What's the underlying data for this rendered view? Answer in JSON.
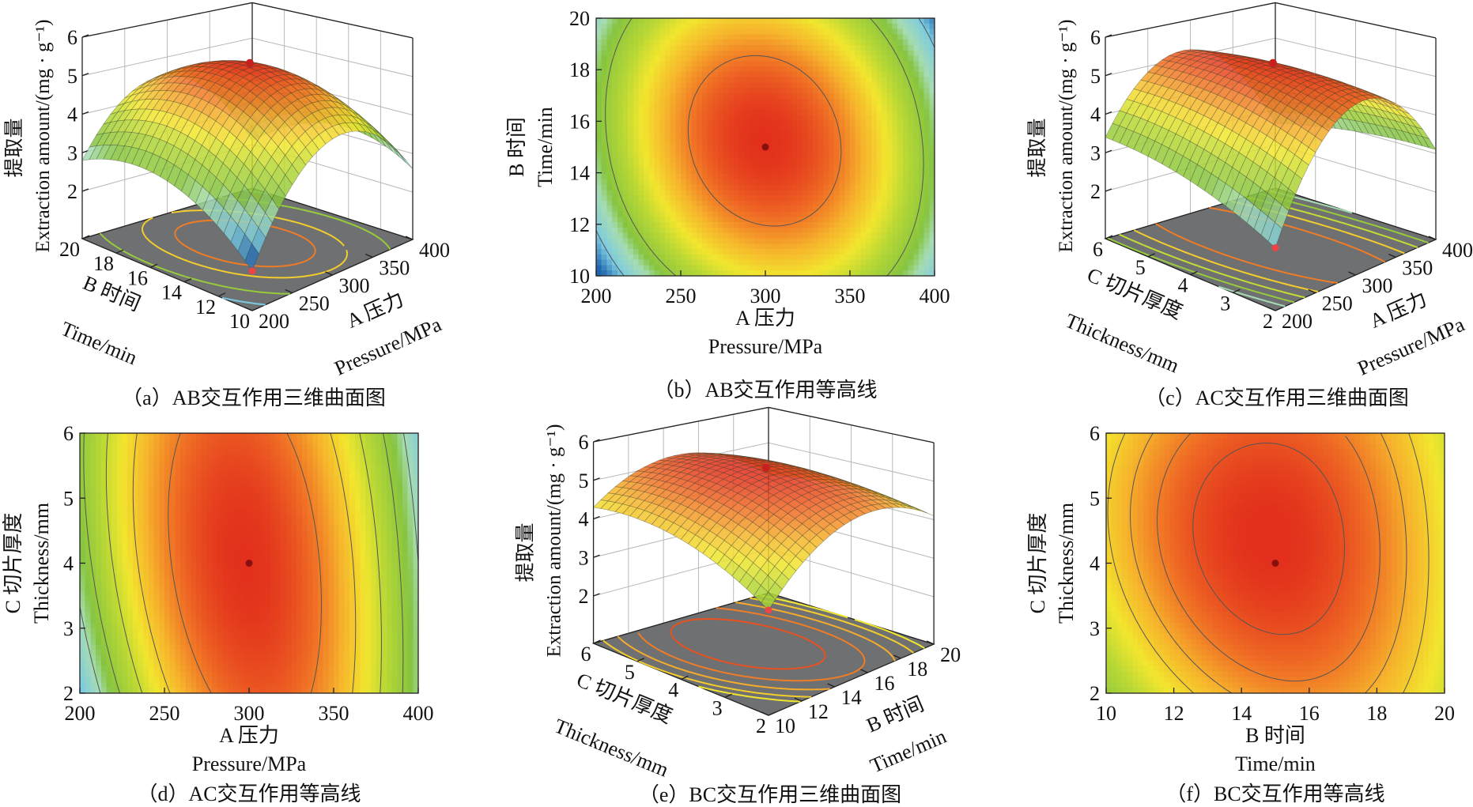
{
  "colormap": [
    {
      "value": 2.0,
      "color": "#1f64ad"
    },
    {
      "value": 2.5,
      "color": "#7ccbe0"
    },
    {
      "value": 3.0,
      "color": "#a6dcb4"
    },
    {
      "value": 3.3,
      "color": "#86c440"
    },
    {
      "value": 3.9,
      "color": "#b9d835"
    },
    {
      "value": 4.3,
      "color": "#f2e62e"
    },
    {
      "value": 4.7,
      "color": "#f6b42c"
    },
    {
      "value": 5.1,
      "color": "#ef6a24"
    },
    {
      "value": 5.45,
      "color": "#e2301c"
    }
  ],
  "floor_color": "#6e7071",
  "chart_data": [
    {
      "type": "surface",
      "caption": "（a）AB交互作用三维曲面图",
      "x_axis": {
        "label_cn": "A 压力",
        "label_en": "Pressure/MPa",
        "range": [
          200,
          400
        ],
        "ticks": [
          200,
          250,
          300,
          350,
          400
        ]
      },
      "y_axis": {
        "label_cn": "B 时间",
        "label_en": "Time/min",
        "range": [
          10,
          20
        ],
        "ticks": [
          10,
          12,
          14,
          16,
          18,
          20
        ]
      },
      "z_axis": {
        "label_cn": "提取量",
        "label_en": "Extraction amount/(mg · g⁻¹)",
        "ticks": [
          2,
          3,
          4,
          5,
          6
        ]
      },
      "z_grid": {
        "x": [
          200,
          300,
          400
        ],
        "y": [
          10,
          15,
          20
        ],
        "values": [
          [
            1.8,
            4.3,
            2.6
          ],
          [
            3.2,
            5.45,
            3.2
          ],
          [
            2.8,
            4.5,
            2.1
          ]
        ]
      },
      "contour_levels": [
        2.5,
        3.5,
        4.5,
        5.0
      ]
    },
    {
      "type": "contour",
      "caption": "（b）AB交互作用等高线",
      "x_axis": {
        "label_cn": "A 压力",
        "label_en": "Pressure/MPa",
        "range": [
          200,
          400
        ],
        "ticks": [
          200,
          250,
          300,
          350,
          400
        ]
      },
      "y_axis": {
        "label_cn": "B 时间",
        "label_en": "Time/min",
        "range": [
          10,
          20
        ],
        "ticks": [
          10,
          12,
          14,
          16,
          18,
          20
        ]
      },
      "z_grid": {
        "x": [
          200,
          300,
          400
        ],
        "y": [
          10,
          15,
          20
        ],
        "values": [
          [
            1.8,
            4.3,
            2.6
          ],
          [
            3.2,
            5.45,
            3.2
          ],
          [
            2.8,
            4.5,
            2.1
          ]
        ]
      },
      "contour_levels": [
        2.5,
        3.5,
        5.0
      ],
      "center_point": {
        "x": 300,
        "y": 15
      }
    },
    {
      "type": "surface",
      "caption": "（c）AC交互作用三维曲面图",
      "x_axis": {
        "label_cn": "A 压力",
        "label_en": "Pressure/MPa",
        "range": [
          200,
          400
        ],
        "ticks": [
          200,
          250,
          300,
          350,
          400
        ]
      },
      "y_axis": {
        "label_cn": "C 切片厚度",
        "label_en": "Thickness/mm",
        "range": [
          2,
          6
        ],
        "ticks": [
          2,
          3,
          4,
          5,
          6
        ]
      },
      "z_axis": {
        "label_cn": "提取量",
        "label_en": "Extraction amount/(mg · g⁻¹)",
        "ticks": [
          2,
          3,
          4,
          5,
          6
        ]
      },
      "z_grid": {
        "x": [
          200,
          300,
          400
        ],
        "y": [
          2,
          4,
          6
        ],
        "values": [
          [
            2.4,
            5.2,
            3.1
          ],
          [
            3.2,
            5.45,
            3.0
          ],
          [
            3.4,
            5.2,
            2.6
          ]
        ]
      },
      "contour_levels": [
        3.0,
        3.5,
        4.0,
        4.5,
        5.0
      ]
    },
    {
      "type": "contour",
      "caption": "（d）AC交互作用等高线",
      "x_axis": {
        "label_cn": "A 压力",
        "label_en": "Pressure/MPa",
        "range": [
          200,
          400
        ],
        "ticks": [
          200,
          250,
          300,
          350,
          400
        ]
      },
      "y_axis": {
        "label_cn": "C 切片厚度",
        "label_en": "Thickness/mm",
        "range": [
          2,
          6
        ],
        "ticks": [
          2,
          3,
          4,
          5,
          6
        ]
      },
      "z_grid": {
        "x": [
          200,
          300,
          400
        ],
        "y": [
          2,
          4,
          6
        ],
        "values": [
          [
            2.4,
            5.2,
            3.1
          ],
          [
            3.2,
            5.45,
            3.0
          ],
          [
            3.4,
            5.2,
            2.6
          ]
        ]
      },
      "contour_levels": [
        3.0,
        3.5,
        4.0,
        4.5,
        5.0
      ],
      "center_point": {
        "x": 300,
        "y": 4
      }
    },
    {
      "type": "surface",
      "caption": "（e）BC交互作用三维曲面图",
      "x_axis": {
        "label_cn": "B 时间",
        "label_en": "Time/min",
        "range": [
          10,
          20
        ],
        "ticks": [
          10,
          12,
          14,
          16,
          18,
          20
        ]
      },
      "y_axis": {
        "label_cn": "C 切片厚度",
        "label_en": "Thickness/mm",
        "range": [
          2,
          6
        ],
        "ticks": [
          2,
          3,
          4,
          5,
          6
        ]
      },
      "z_axis": {
        "label_cn": "提取量",
        "label_en": "Extraction amount/(mg · g⁻¹)",
        "ticks": [
          2,
          3,
          4,
          5,
          6
        ]
      },
      "z_grid": {
        "x": [
          10,
          15,
          20
        ],
        "y": [
          2,
          4,
          6
        ],
        "values": [
          [
            3.5,
            4.9,
            4.1
          ],
          [
            4.4,
            5.45,
            4.3
          ],
          [
            4.3,
            5.2,
            4.1
          ]
        ]
      },
      "contour_levels": [
        4.3,
        4.5,
        4.75,
        5.0,
        5.25
      ]
    },
    {
      "type": "contour",
      "caption": "（f）BC交互作用等高线",
      "x_axis": {
        "label_cn": "B 时间",
        "label_en": "Time/min",
        "range": [
          10,
          20
        ],
        "ticks": [
          10,
          12,
          14,
          16,
          18,
          20
        ]
      },
      "y_axis": {
        "label_cn": "C 切片厚度",
        "label_en": "Thickness/mm",
        "range": [
          2,
          6
        ],
        "ticks": [
          2,
          3,
          4,
          5,
          6
        ]
      },
      "z_grid": {
        "x": [
          10,
          15,
          20
        ],
        "y": [
          2,
          4,
          6
        ],
        "values": [
          [
            3.5,
            4.9,
            4.1
          ],
          [
            4.4,
            5.45,
            4.3
          ],
          [
            4.3,
            5.2,
            4.1
          ]
        ]
      },
      "contour_levels": [
        4.5,
        4.75,
        5.0,
        5.25
      ],
      "center_point": {
        "x": 15,
        "y": 4
      }
    }
  ]
}
